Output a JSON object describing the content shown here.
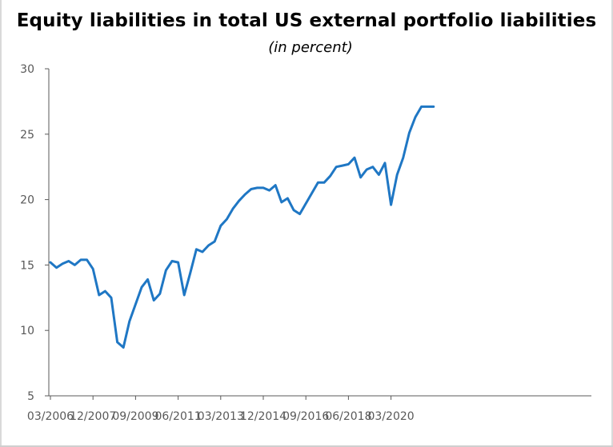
{
  "chart_data": {
    "type": "line",
    "title": "Equity liabilities in total US external portfolio liabilities",
    "subtitle": "(in percent)",
    "xlabel": "",
    "ylabel": "",
    "ylim": [
      5,
      30
    ],
    "yticks": [
      5,
      10,
      15,
      20,
      25,
      30
    ],
    "xticks": [
      "03/2006",
      "12/2007",
      "09/2009",
      "06/2011",
      "03/2013",
      "12/2014",
      "09/2016",
      "06/2018",
      "03/2020"
    ],
    "grid": false,
    "legend": "none",
    "line_color": "#1f77c4",
    "series": [
      {
        "x": [
          "03/2006",
          "06/2006",
          "09/2006",
          "12/2006",
          "03/2007",
          "06/2007",
          "09/2007",
          "12/2007",
          "03/2008",
          "06/2008",
          "09/2008",
          "12/2008",
          "03/2009",
          "06/2009",
          "09/2009",
          "12/2009",
          "03/2010",
          "06/2010",
          "09/2010",
          "12/2010",
          "03/2011",
          "06/2011",
          "09/2011",
          "12/2011",
          "03/2012",
          "06/2012",
          "09/2012",
          "12/2012",
          "03/2013",
          "06/2013",
          "09/2013",
          "12/2013",
          "03/2014",
          "06/2014",
          "09/2014",
          "12/2014",
          "03/2015",
          "06/2015",
          "09/2015",
          "12/2015",
          "03/2016",
          "06/2016",
          "09/2016",
          "12/2016",
          "03/2017",
          "06/2017",
          "09/2017",
          "12/2017",
          "03/2018",
          "06/2018",
          "09/2018",
          "12/2018",
          "03/2019",
          "06/2019",
          "09/2019",
          "12/2019",
          "03/2020",
          "06/2020",
          "09/2020",
          "12/2020",
          "03/2021",
          "06/2021",
          "09/2021",
          "12/2021"
        ],
        "values": [
          15.2,
          14.8,
          15.1,
          15.3,
          15.0,
          15.4,
          15.4,
          14.7,
          12.7,
          13.0,
          12.5,
          9.1,
          8.7,
          10.7,
          12.0,
          13.3,
          13.9,
          12.3,
          12.8,
          14.6,
          15.3,
          15.2,
          12.7,
          14.4,
          16.2,
          16.0,
          16.5,
          16.8,
          18.0,
          18.5,
          19.3,
          19.9,
          20.4,
          20.8,
          20.9,
          20.9,
          20.7,
          21.1,
          19.8,
          20.1,
          19.2,
          18.9,
          19.7,
          20.5,
          21.3,
          21.3,
          21.8,
          22.5,
          22.6,
          22.7,
          23.2,
          21.7,
          22.3,
          22.5,
          21.9,
          22.8,
          19.6,
          21.9,
          23.2,
          25.1,
          26.3,
          27.1,
          27.1,
          27.1
        ]
      }
    ]
  }
}
